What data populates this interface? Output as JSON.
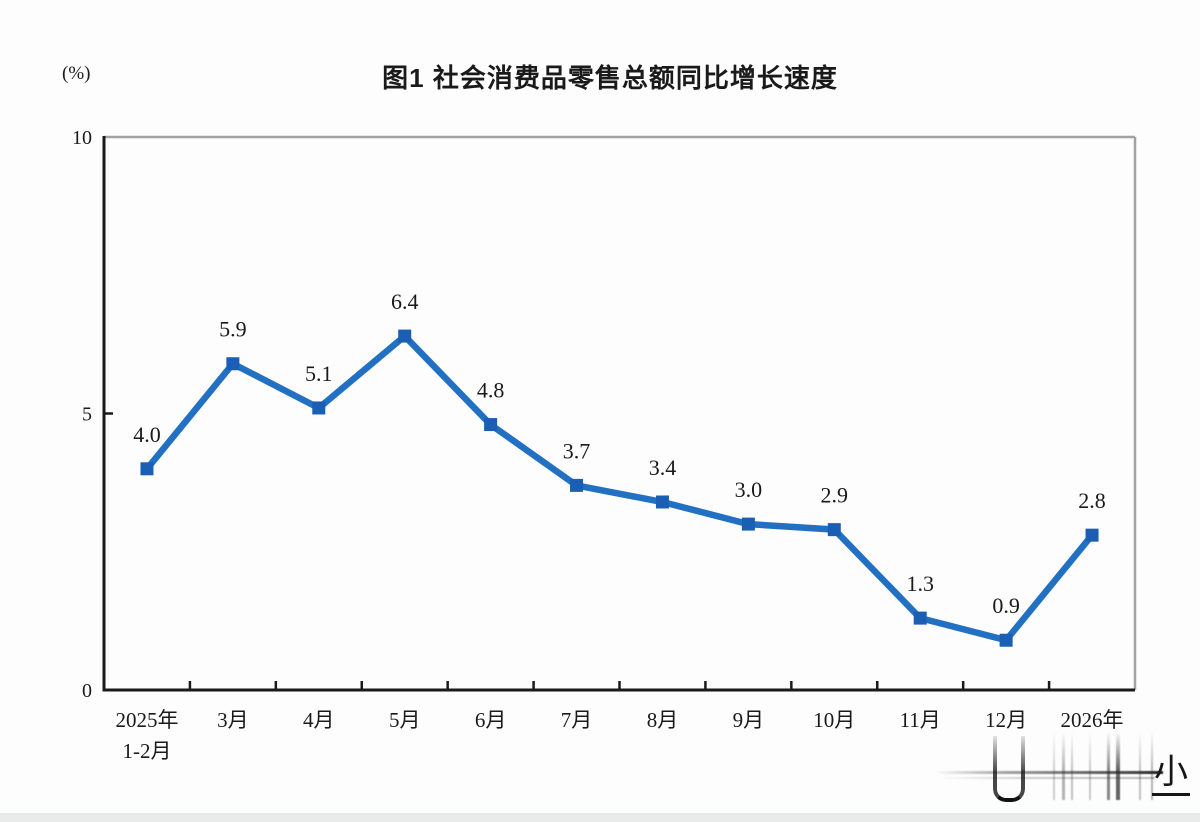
{
  "page": {
    "background": "#fdfdfd",
    "bottom_strip_color": "#e9ebeb"
  },
  "chart_data": {
    "type": "line",
    "title": "图1 社会消费品零售总额同比增长速度",
    "unit_label": "(%)",
    "categories": [
      "2025年\n1-2月",
      "3月",
      "4月",
      "5月",
      "6月",
      "7月",
      "8月",
      "9月",
      "10月",
      "11月",
      "12月",
      "2026年"
    ],
    "values": [
      4.0,
      5.9,
      5.1,
      6.4,
      4.8,
      3.7,
      3.4,
      3.0,
      2.9,
      1.3,
      0.9,
      2.8
    ],
    "labels": [
      "4.0",
      "5.9",
      "5.1",
      "6.4",
      "4.8",
      "3.7",
      "3.4",
      "3.0",
      "2.9",
      "1.3",
      "0.9",
      "2.8"
    ],
    "ylim": [
      0,
      10
    ],
    "yticks": [
      0,
      5,
      10
    ],
    "grid": false,
    "legend": "none",
    "line_color": "#2270c2",
    "marker_color": "#1b5fb5",
    "label_color": "#1a1a1a",
    "axis_color": "#1a1a1a",
    "border_color": "#a3a3a3"
  },
  "watermark": {
    "text": "小"
  }
}
